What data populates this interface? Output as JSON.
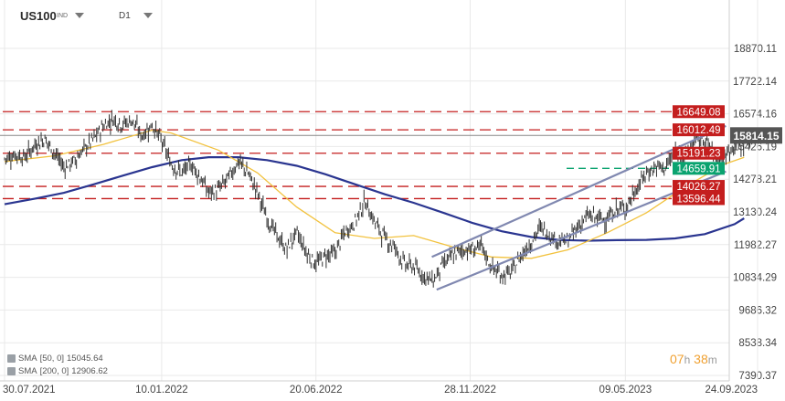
{
  "header": {
    "symbol": "US100",
    "symbol_sub": "IND",
    "timeframe": "D1"
  },
  "legend": [
    {
      "label": "SMA",
      "params": "[50, 0]",
      "value": "15045.64"
    },
    {
      "label": "SMA",
      "params": "[200, 0]",
      "value": "12906.62"
    }
  ],
  "timer": {
    "hours": "07",
    "h_unit": "h",
    "minutes": "38",
    "m_unit": "m"
  },
  "colors": {
    "price": "#2f2f2f",
    "sma50": "#f2c23e",
    "sma200": "#2a3590",
    "channel": "#8088b0",
    "level_red": "#c41e1e",
    "level_green": "#0aa36f",
    "current": "#888888",
    "grid": "#e9e9e9"
  },
  "chart_data": {
    "type": "line",
    "title": "",
    "x_tick_labels": [
      "30.07.2021",
      "10.01.2022",
      "20.06.2022",
      "28.11.2022",
      "09.05.2023",
      "24.09.2023"
    ],
    "x_range": [
      "30.07.2021",
      "24.09.2023"
    ],
    "y_tick_labels": [
      "7390.37",
      "8538.34",
      "9686.32",
      "10834.29",
      "11982.27",
      "13130.24",
      "14278.21",
      "15426.19",
      "16574.16",
      "17722.14",
      "18870.11"
    ],
    "y_range": [
      7100,
      19900
    ],
    "grid": true,
    "current_price": 15814.15,
    "levels": [
      {
        "value": 16649.08,
        "label": "16649.08",
        "color": "red"
      },
      {
        "value": 16012.49,
        "label": "16012.49",
        "color": "red"
      },
      {
        "value": 15191.23,
        "label": "15191.23",
        "color": "red"
      },
      {
        "value": 14659.91,
        "label": "14659.91",
        "color": "green"
      },
      {
        "value": 14026.27,
        "label": "14026.27",
        "color": "red"
      },
      {
        "value": 13596.44,
        "label": "13596.44",
        "color": "red"
      }
    ],
    "channel": {
      "upper": [
        [
          "19.10.2022",
          11550
        ],
        [
          "22.08.2023",
          16150
        ]
      ],
      "lower": [
        [
          "24.10.2022",
          10400
        ],
        [
          "22.08.2023",
          14550
        ]
      ]
    },
    "series": [
      {
        "name": "Price",
        "role": "price",
        "x": [
          "30.07.2021",
          "10.08.2021",
          "20.08.2021",
          "31.08.2021",
          "10.09.2021",
          "20.09.2021",
          "30.09.2021",
          "10.10.2021",
          "20.10.2021",
          "31.10.2021",
          "10.11.2021",
          "20.11.2021",
          "30.11.2021",
          "10.12.2021",
          "20.12.2021",
          "31.12.2021",
          "10.01.2022",
          "20.01.2022",
          "31.01.2022",
          "10.02.2022",
          "20.02.2022",
          "28.02.2022",
          "10.03.2022",
          "20.03.2022",
          "31.03.2022",
          "10.04.2022",
          "20.04.2022",
          "30.04.2022",
          "10.05.2022",
          "20.05.2022",
          "31.05.2022",
          "10.06.2022",
          "20.06.2022",
          "30.06.2022",
          "10.07.2022",
          "20.07.2022",
          "31.07.2022",
          "10.08.2022",
          "20.08.2022",
          "31.08.2022",
          "10.09.2022",
          "20.09.2022",
          "30.09.2022",
          "10.10.2022",
          "20.10.2022",
          "31.10.2022",
          "10.11.2022",
          "20.11.2022",
          "30.11.2022",
          "10.12.2022",
          "20.12.2022",
          "31.12.2022",
          "10.01.2023",
          "20.01.2023",
          "31.01.2023",
          "10.02.2023",
          "20.02.2023",
          "28.02.2023",
          "10.03.2023",
          "20.03.2023",
          "31.03.2023",
          "10.04.2023",
          "20.04.2023",
          "30.04.2023",
          "10.05.2023",
          "20.05.2023",
          "31.05.2023",
          "10.06.2023",
          "20.06.2023",
          "30.06.2023",
          "10.07.2023",
          "20.07.2023",
          "31.07.2023",
          "10.08.2023",
          "20.08.2023",
          "31.08.2023",
          "10.09.2023",
          "16.09.2023"
        ],
        "values": [
          15000,
          15150,
          15050,
          15500,
          15700,
          15200,
          14700,
          14900,
          15300,
          15700,
          16150,
          16400,
          16200,
          16350,
          15800,
          16200,
          15600,
          14800,
          14500,
          14800,
          14300,
          13800,
          13900,
          14300,
          14900,
          14500,
          13800,
          12900,
          12300,
          11800,
          12400,
          11700,
          11300,
          11600,
          11700,
          12400,
          12800,
          13500,
          12800,
          12200,
          11900,
          11300,
          11200,
          10900,
          10700,
          11300,
          11600,
          11800,
          11800,
          11900,
          11200,
          10900,
          11000,
          11600,
          12100,
          12600,
          12300,
          12100,
          12100,
          12600,
          13000,
          12900,
          12900,
          13200,
          13300,
          13900,
          14500,
          14700,
          14700,
          15200,
          15100,
          15600,
          15700,
          15100,
          15000,
          15500,
          15500,
          15800
        ]
      },
      {
        "name": "SMA [50, 0]",
        "role": "sma50",
        "x": [
          "30.07.2021",
          "20.09.2021",
          "10.11.2021",
          "31.12.2021",
          "20.01.2022",
          "10.03.2022",
          "20.04.2022",
          "31.05.2022",
          "10.07.2022",
          "20.08.2022",
          "30.09.2022",
          "10.11.2022",
          "20.12.2022",
          "31.01.2023",
          "10.03.2023",
          "20.04.2023",
          "31.05.2023",
          "10.07.2023",
          "20.08.2023",
          "10.09.2023"
        ],
        "values": [
          14900,
          15100,
          15500,
          16000,
          15900,
          15300,
          14500,
          13300,
          12400,
          12200,
          12300,
          11900,
          11550,
          11500,
          11800,
          12400,
          13100,
          14000,
          14800,
          15045.64
        ]
      },
      {
        "name": "SMA [200, 0]",
        "role": "sma200",
        "x": [
          "30.07.2021",
          "31.08.2021",
          "30.09.2021",
          "31.10.2021",
          "30.11.2021",
          "31.12.2021",
          "31.01.2022",
          "28.02.2022",
          "31.03.2022",
          "30.04.2022",
          "31.05.2022",
          "30.06.2022",
          "31.07.2022",
          "31.08.2022",
          "30.09.2022",
          "31.10.2022",
          "30.11.2022",
          "31.12.2022",
          "31.01.2023",
          "28.02.2023",
          "31.03.2023",
          "30.04.2023",
          "31.05.2023",
          "30.06.2023",
          "31.07.2023",
          "31.08.2023",
          "10.09.2023"
        ],
        "values": [
          13400,
          13600,
          13800,
          14100,
          14400,
          14700,
          14950,
          15050,
          15050,
          14950,
          14750,
          14450,
          14100,
          13750,
          13450,
          13100,
          12750,
          12450,
          12250,
          12150,
          12120,
          12140,
          12150,
          12200,
          12350,
          12700,
          12906.62
        ]
      }
    ]
  }
}
